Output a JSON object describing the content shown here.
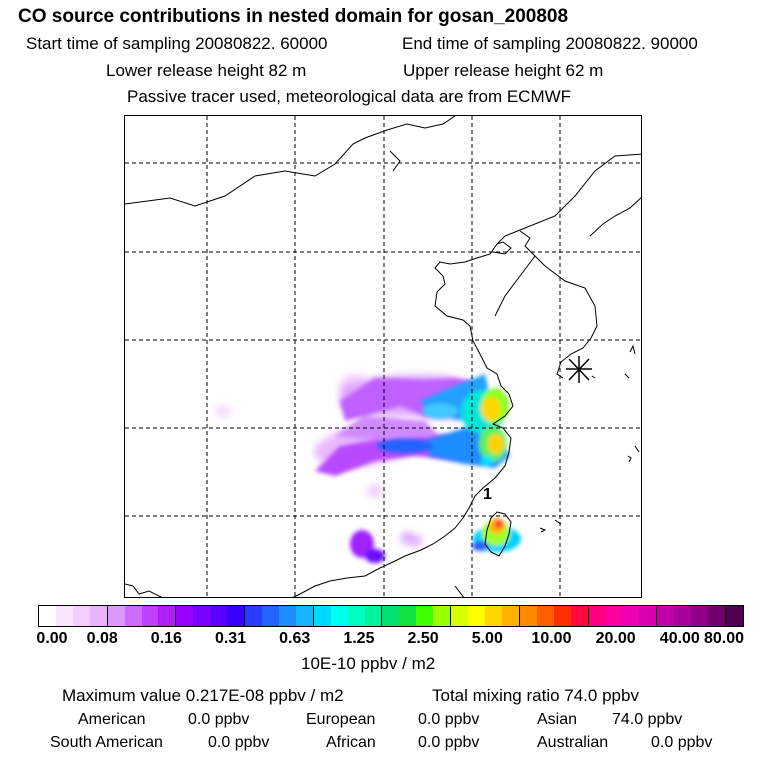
{
  "header": {
    "title": "CO  source contributions in nested domain for gosan_200808",
    "start_time": "Start time of sampling 20080822. 60000",
    "end_time": "End time of sampling 20080822. 90000",
    "lower_height": "Lower release height   82 m",
    "upper_height": "Upper release height   62 m",
    "tracer_note": "Passive tracer used, meteorological data are from ECMWF"
  },
  "map": {
    "receptor_label": "1",
    "colors": {
      "ocean": "#ffffff",
      "coast": "#000000",
      "grid": "#000000"
    }
  },
  "colorbar": {
    "unit": "10E-10 ppbv / m2",
    "ticks": [
      "0.00",
      "0.08",
      "0.16",
      "0.31",
      "0.63",
      "1.25",
      "2.50",
      "5.00",
      "10.00",
      "20.00",
      "40.00",
      "80.00"
    ],
    "colors": [
      "#ffffff",
      "#fbe6ff",
      "#f4ccff",
      "#eab3ff",
      "#de99ff",
      "#cf6bff",
      "#c040ff",
      "#ad1fff",
      "#9a00ff",
      "#7a00ff",
      "#5a00ff",
      "#3a00ff",
      "#2a3bff",
      "#2464ff",
      "#1e8cff",
      "#14b4ff",
      "#00d9ff",
      "#00ffee",
      "#00ffc0",
      "#00f59a",
      "#00e070",
      "#10e040",
      "#40ff00",
      "#9aff00",
      "#d8ff00",
      "#ffff00",
      "#ffd700",
      "#ffb000",
      "#ff8a00",
      "#ff6000",
      "#ff3000",
      "#ff0a40",
      "#ff0080",
      "#ff00a0",
      "#f000b0",
      "#d800b0",
      "#c000a8",
      "#a80098",
      "#900088",
      "#700070",
      "#500050"
    ]
  },
  "stats": {
    "max_value": "Maximum value  0.217E-08 ppbv / m2",
    "total_mixing": "Total mixing ratio       74.0 ppbv",
    "american": "American",
    "american_val": "0.0 ppbv",
    "european": "European",
    "european_val": "0.0 ppbv",
    "asian": "Asian",
    "asian_val": "74.0 ppbv",
    "south_american": "South American",
    "south_american_val": "0.0 ppbv",
    "african": "African",
    "african_val": "0.0 ppbv",
    "australian": "Australian",
    "australian_val": "0.0 ppbv"
  }
}
